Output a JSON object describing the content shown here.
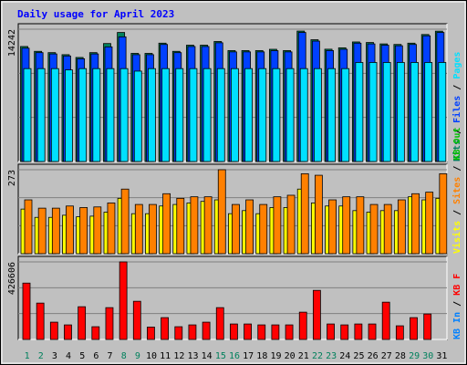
{
  "chart_data": {
    "type": "bar",
    "title": "Daily usage for April 2023",
    "days": [
      "1",
      "2",
      "3",
      "4",
      "5",
      "6",
      "7",
      "8",
      "9",
      "10",
      "11",
      "12",
      "13",
      "14",
      "15",
      "16",
      "17",
      "18",
      "19",
      "20",
      "21",
      "22",
      "23",
      "24",
      "25",
      "26",
      "27",
      "28",
      "29",
      "30",
      "31"
    ],
    "weekend_days": [
      1,
      2,
      8,
      9,
      15,
      16,
      22,
      23,
      29,
      30
    ],
    "colors": {
      "title": "#0000ff",
      "plot_bg": "#c0c0c0",
      "weekday_label": "#000000",
      "weekend_label": "#00805c",
      "hits": "#00805c",
      "files": "#0040ff",
      "pages": "#00e0ff",
      "visits": "#ffff00",
      "sites": "#ff8000",
      "kbin": "#0080ff",
      "kbout": "#00c000",
      "kbf": "#ff0000"
    },
    "panels": [
      {
        "id": "hits",
        "scale_label": "14242",
        "ymax": 14242,
        "legend": [
          {
            "text": "Hits",
            "color": "#00805c"
          },
          {
            "text": "Files",
            "color": "#0040ff"
          },
          {
            "text": "Pages",
            "color": "#00e0ff"
          }
        ],
        "series": [
          {
            "name": "Hits",
            "color": "#00805c",
            "values": [
              12380,
              11860,
              11720,
              11500,
              11200,
              11720,
              12700,
              13890,
              11640,
              11640,
              12740,
              11860,
              12520,
              12520,
              12920,
              11940,
              11940,
              11940,
              12080,
              11940,
              14040,
              13110,
              12090,
              12240,
              12870,
              12810,
              12660,
              12600,
              12740,
              13670,
              14030
            ]
          },
          {
            "name": "Files",
            "color": "#0040ff",
            "values": [
              12200,
              11720,
              11580,
              11360,
              11060,
              11580,
              12340,
              13420,
              11500,
              11500,
              12600,
              11720,
              12380,
              12380,
              12780,
              11800,
              11800,
              11800,
              11930,
              11800,
              13890,
              12960,
              11940,
              12080,
              12740,
              12660,
              12520,
              12460,
              12600,
              13530,
              13890
            ]
          },
          {
            "name": "Pages",
            "color": "#00e0ff",
            "values": [
              10000,
              10000,
              10000,
              9860,
              10000,
              10000,
              10000,
              10000,
              9730,
              10000,
              10000,
              10000,
              10000,
              10000,
              10000,
              10000,
              10000,
              10000,
              10000,
              10000,
              10000,
              10000,
              10000,
              10000,
              10660,
              10660,
              10660,
              10660,
              10660,
              10660,
              10660
            ]
          }
        ]
      },
      {
        "id": "visits",
        "scale_label": "273",
        "ymax": 273,
        "legend": [
          {
            "text": "Visits",
            "color": "#ffff00"
          },
          {
            "text": "Sites",
            "color": "#ff8000"
          },
          {
            "text": "KB Out",
            "color": "#00c000"
          }
        ],
        "series": [
          {
            "name": "Visits",
            "color": "#ffff00",
            "values": [
              145,
              118,
              118,
              125,
              120,
              122,
              135,
              180,
              130,
              130,
              155,
              160,
              165,
              170,
              175,
              130,
              140,
              130,
              150,
              150,
              210,
              165,
              155,
              155,
              140,
              135,
              140,
              140,
              185,
              175,
              180
            ]
          },
          {
            "name": "Sites",
            "color": "#ff8000",
            "values": [
              175,
              148,
              148,
              155,
              150,
              152,
              165,
              210,
              160,
              160,
              195,
              180,
              185,
              185,
              273,
              160,
              175,
              160,
              185,
              190,
              260,
              255,
              175,
              185,
              185,
              160,
              160,
              175,
              195,
              200,
              260
            ]
          }
        ]
      },
      {
        "id": "kbf",
        "scale_label": "426606",
        "ymax": 426606,
        "legend": [
          {
            "text": "KB In",
            "color": "#0080ff"
          },
          {
            "text": "KB F",
            "color": "#ff0000"
          }
        ],
        "series": [
          {
            "name": "KB F",
            "color": "#ff0000",
            "values": [
              310000,
              200000,
              95000,
              80000,
              180000,
              70000,
              175000,
              426606,
              210000,
              68000,
              120000,
              70000,
              80000,
              95000,
              175000,
              85000,
              85000,
              80000,
              80000,
              80000,
              150000,
              270000,
              85000,
              80000,
              85000,
              85000,
              205000,
              75000,
              120000,
              140000,
              0
            ]
          }
        ]
      }
    ]
  }
}
